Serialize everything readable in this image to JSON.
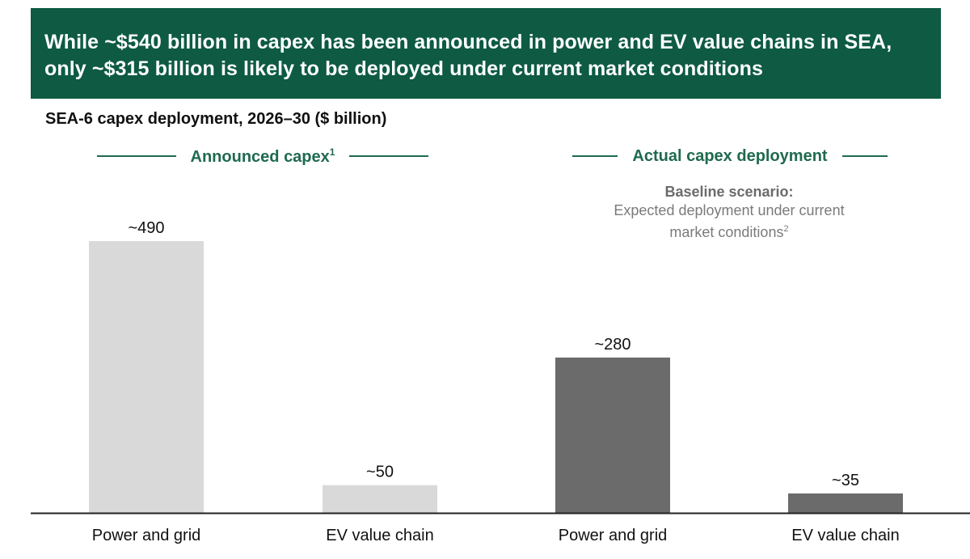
{
  "header": {
    "title": "While ~$540 billion in capex has been announced in power and EV value chains in SEA, only ~$315 billion is likely to be deployed under current market conditions"
  },
  "subtitle": "SEA-6 capex deployment, 2026–30 ($ billion)",
  "groups": [
    {
      "label": "Announced capex",
      "footnote": "1"
    },
    {
      "label": "Actual capex deployment",
      "footnote": ""
    }
  ],
  "scenario": {
    "heading": "Baseline scenario:",
    "line1": "Expected deployment under current",
    "line2": "market conditions",
    "footnote": "2"
  },
  "colors": {
    "banner": "#0e5a43",
    "group_accent": "#1f6a4f",
    "announced_bar": "#d9d9d9",
    "actual_bar": "#6b6b6b",
    "axis": "#222222"
  },
  "chart_data": {
    "type": "bar",
    "categories": [
      "Power and grid",
      "EV value chain",
      "Power and grid",
      "EV value chain"
    ],
    "values": [
      490,
      50,
      280,
      35
    ],
    "data_labels": [
      "~490",
      "~50",
      "~280",
      "~35"
    ],
    "bar_groups": [
      "Announced capex",
      "Announced capex",
      "Actual capex deployment",
      "Actual capex deployment"
    ],
    "bar_colors": [
      "#d9d9d9",
      "#d9d9d9",
      "#6b6b6b",
      "#6b6b6b"
    ],
    "title": "SEA-6 capex deployment, 2026–30 ($ billion)",
    "xlabel": "",
    "ylabel": "",
    "ylim": [
      0,
      490
    ],
    "grid": false,
    "legend": "none"
  }
}
